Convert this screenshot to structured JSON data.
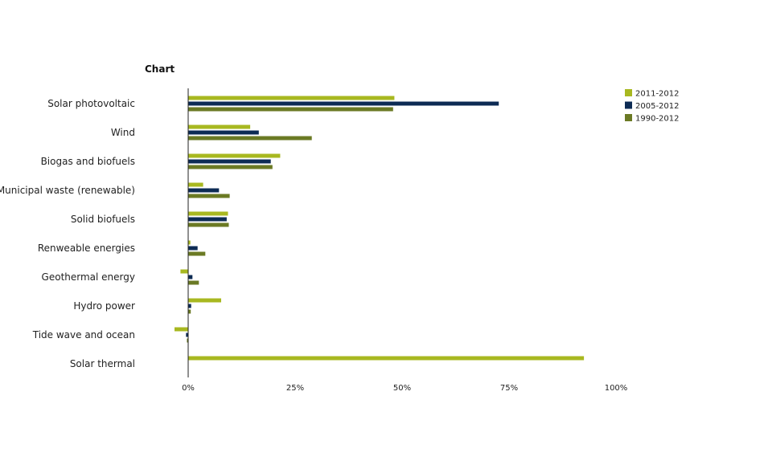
{
  "chart_data": {
    "type": "bar",
    "orientation": "horizontal",
    "title": "Chart",
    "categories": [
      "Solar photovoltaic",
      "Wind",
      "Biogas and biofuels",
      "Municipal waste (renewable)",
      "Solid biofuels",
      "Renweable energies",
      "Geothermal energy",
      "Hydro power",
      "Tide wave and ocean",
      "Solar thermal"
    ],
    "series": [
      {
        "name": "2011-2012",
        "color": "#a8b820",
        "values": [
          48.2,
          14.5,
          21.5,
          3.5,
          9.3,
          0.5,
          -1.8,
          7.7,
          -3.2,
          92.5
        ]
      },
      {
        "name": "2005-2012",
        "color": "#0d2b54",
        "values": [
          72.6,
          16.5,
          19.3,
          7.2,
          9.0,
          2.2,
          1.0,
          0.7,
          -0.5,
          0
        ]
      },
      {
        "name": "1990-2012",
        "color": "#6b7a24",
        "values": [
          47.9,
          28.9,
          19.7,
          9.7,
          9.5,
          4.0,
          2.5,
          0.6,
          -0.3,
          0
        ]
      }
    ],
    "xlim": [
      -5,
      100
    ],
    "xticks": [
      0,
      25,
      50,
      75,
      100
    ],
    "xtick_labels": [
      "0%",
      "25%",
      "50%",
      "75%",
      "100%"
    ],
    "xlabel": "",
    "ylabel": "",
    "grid": false,
    "legend_position": "top-right"
  }
}
